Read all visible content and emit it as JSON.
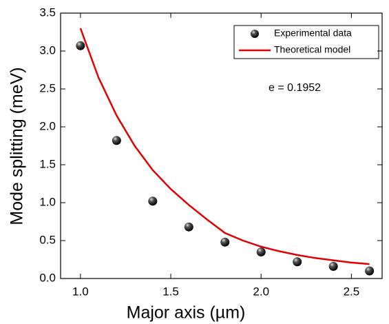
{
  "chart_data": {
    "type": "scatter",
    "x_label": "Major axis (µm)",
    "y_label": "Mode splitting (meV)",
    "annotation": "e = 0.1952",
    "xlim": [
      0.89,
      2.67
    ],
    "ylim": [
      0,
      3.5
    ],
    "xticks": [
      {
        "value": 1,
        "label": "1.0"
      },
      {
        "value": 1.5,
        "label": "1.5"
      },
      {
        "value": 2,
        "label": "2.0"
      },
      {
        "value": 2.5,
        "label": "2.5"
      }
    ],
    "yticks": [
      {
        "value": 0,
        "label": "0.0"
      },
      {
        "value": 0.5,
        "label": "0.5"
      },
      {
        "value": 1,
        "label": "1.0"
      },
      {
        "value": 1.5,
        "label": "1.5"
      },
      {
        "value": 2,
        "label": "2.0"
      },
      {
        "value": 2.5,
        "label": "2.5"
      },
      {
        "value": 3,
        "label": "3.0"
      },
      {
        "value": 3.5,
        "label": "3.5"
      }
    ],
    "legend": "upper right",
    "series": [
      {
        "name": "Experimental data",
        "type": "scatter",
        "color": "#000000",
        "x": [
          1.0,
          1.2,
          1.4,
          1.6,
          1.8,
          2.0,
          2.2,
          2.4,
          2.6
        ],
        "values": [
          3.07,
          1.82,
          1.02,
          0.68,
          0.48,
          0.35,
          0.22,
          0.16,
          0.1
        ]
      },
      {
        "name": "Theoretical model",
        "type": "line",
        "color": "#e00000",
        "x": [
          1.0,
          1.1,
          1.2,
          1.3,
          1.4,
          1.5,
          1.6,
          1.7,
          1.8,
          1.9,
          2.0,
          2.1,
          2.2,
          2.3,
          2.4,
          2.5,
          2.6
        ],
        "values": [
          3.3,
          2.65,
          2.15,
          1.75,
          1.43,
          1.18,
          0.97,
          0.78,
          0.6,
          0.5,
          0.42,
          0.36,
          0.31,
          0.27,
          0.24,
          0.21,
          0.19
        ]
      }
    ]
  }
}
